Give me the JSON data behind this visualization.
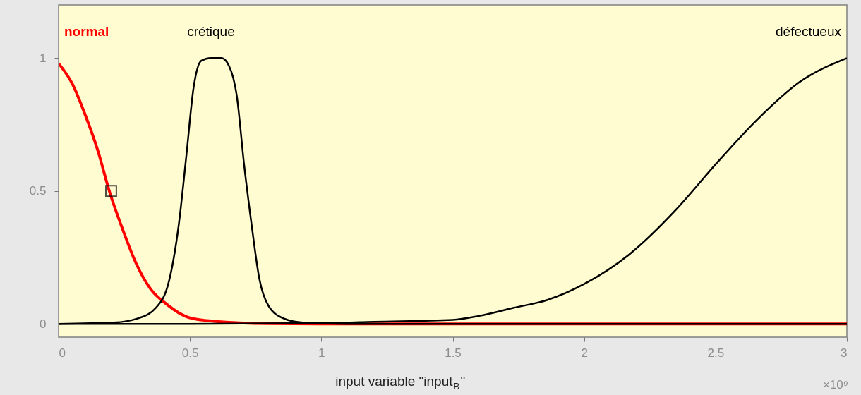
{
  "chart_data": {
    "type": "line",
    "xlabel": "input variable \"input$_{B}$\"",
    "xlim": [
      0,
      3
    ],
    "xticks": [
      0,
      0.5,
      1,
      1.5,
      2,
      2.5,
      3
    ],
    "ylim": [
      -0.05,
      1.2
    ],
    "yticks": [
      0,
      0.5,
      1
    ],
    "annotations": [
      "×10⁹"
    ],
    "series": [
      {
        "name": "normal",
        "color": "#ff0000",
        "x": [
          0,
          0.054,
          0.1,
          0.15,
          0.193,
          0.246,
          0.294,
          0.351,
          0.41,
          0.495,
          0.59,
          0.8,
          1.0,
          3
        ],
        "values": [
          0.98,
          0.9,
          0.79,
          0.65,
          0.5,
          0.35,
          0.23,
          0.13,
          0.075,
          0.024,
          0.01,
          0.001,
          0,
          0
        ]
      },
      {
        "name": "crétique",
        "color": "#000000",
        "x": [
          0,
          0.21,
          0.3,
          0.37,
          0.42,
          0.457,
          0.486,
          0.514,
          0.543,
          0.58,
          0.62,
          0.649,
          0.678,
          0.706,
          0.735,
          0.764,
          0.8,
          0.86,
          0.93,
          1.1,
          3
        ],
        "values": [
          0,
          0.005,
          0.02,
          0.06,
          0.16,
          0.37,
          0.63,
          0.89,
          0.99,
          1,
          1,
          0.97,
          0.86,
          0.6,
          0.37,
          0.17,
          0.066,
          0.019,
          0.005,
          0,
          0
        ]
      },
      {
        "name": "défectueux",
        "color": "#000000",
        "x": [
          0,
          0.5,
          1.0,
          1.2,
          1.5,
          1.6,
          1.73,
          1.86,
          2.0,
          2.17,
          2.35,
          2.5,
          2.66,
          2.82,
          3
        ],
        "values": [
          0,
          0,
          0.003,
          0.008,
          0.015,
          0.03,
          0.06,
          0.09,
          0.15,
          0.26,
          0.43,
          0.6,
          0.77,
          0.91,
          1.0
        ]
      },
      {
        "type": "scatter",
        "marker": "square",
        "color": "#000000",
        "x": [
          0.2
        ],
        "values": [
          0.5
        ]
      }
    ]
  }
}
